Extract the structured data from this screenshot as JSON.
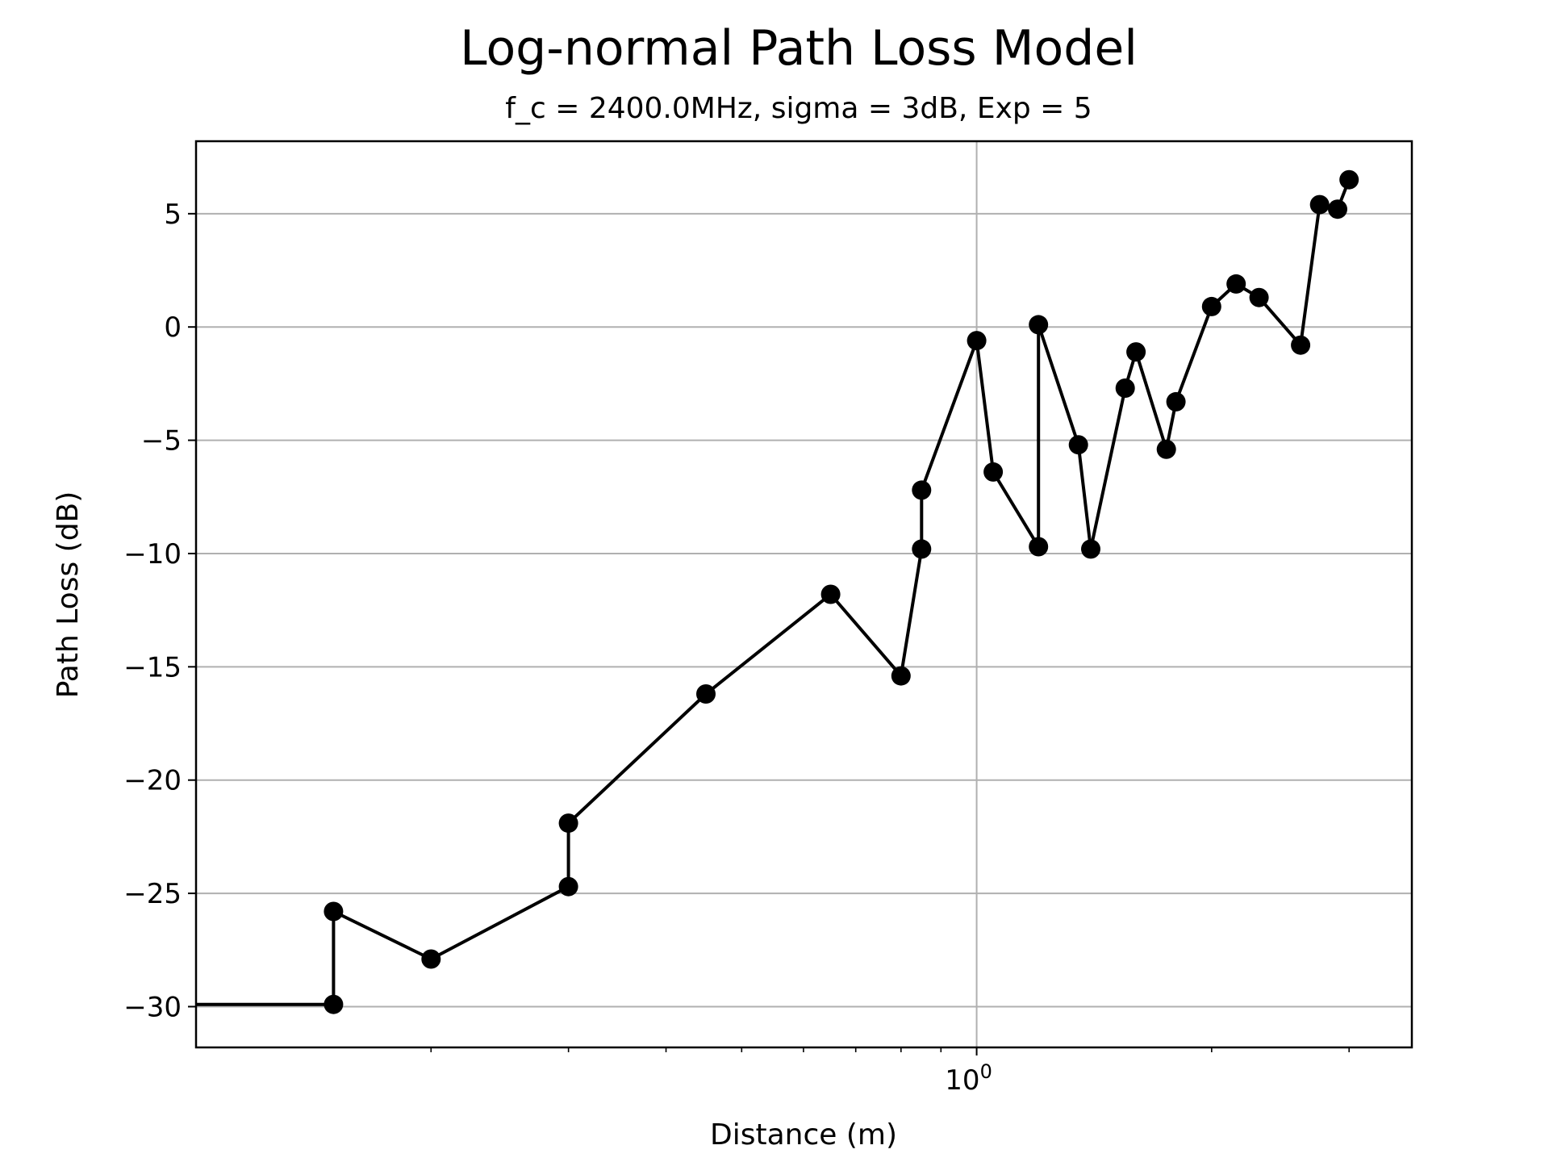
{
  "chart_data": {
    "type": "line",
    "title": "Log-normal Path Loss Model",
    "subtitle": "f_c = 2400.0MHz, sigma = 3dB, Exp = 5",
    "xlabel": "Distance (m)",
    "ylabel": "Path Loss (dB)",
    "x_scale": "log",
    "xlim": [
      0.1,
      3.61
    ],
    "ylim": [
      -31.8,
      8.2
    ],
    "x_major_tick_labels": [
      {
        "value": 1,
        "base": "10",
        "exp": "0"
      }
    ],
    "x_minor_ticks": [
      0.2,
      0.3,
      0.4,
      0.5,
      0.6,
      0.7,
      0.8,
      0.9,
      2,
      3
    ],
    "y_ticks": [
      5,
      0,
      -5,
      -10,
      -15,
      -20,
      -25,
      -30
    ],
    "y_tick_labels": [
      "5",
      "0",
      "−5",
      "−10",
      "−15",
      "−20",
      "−25",
      "−30"
    ],
    "grid": true,
    "line_color": "#000000",
    "grid_color": "#b0b0b0",
    "series": [
      {
        "x": [
          0.1,
          0.15,
          0.15,
          0.2,
          0.3,
          0.3,
          0.45,
          0.65,
          0.8,
          0.85,
          0.85,
          1.0,
          1.05,
          1.2,
          1.2,
          1.35,
          1.4,
          1.55,
          1.6,
          1.75,
          1.8,
          2.0,
          2.15,
          2.3,
          2.6,
          2.75,
          2.9,
          3.0
        ],
        "y": [
          -29.9,
          -29.9,
          -25.8,
          -27.9,
          -24.7,
          -21.9,
          -16.2,
          -11.8,
          -15.4,
          -9.8,
          -7.2,
          -0.6,
          -6.4,
          -9.7,
          0.1,
          -5.2,
          -9.8,
          -2.7,
          -1.1,
          -5.4,
          -3.3,
          0.9,
          1.9,
          1.3,
          -0.8,
          5.4,
          5.2,
          6.5
        ],
        "markers_from_index": 1
      }
    ]
  }
}
